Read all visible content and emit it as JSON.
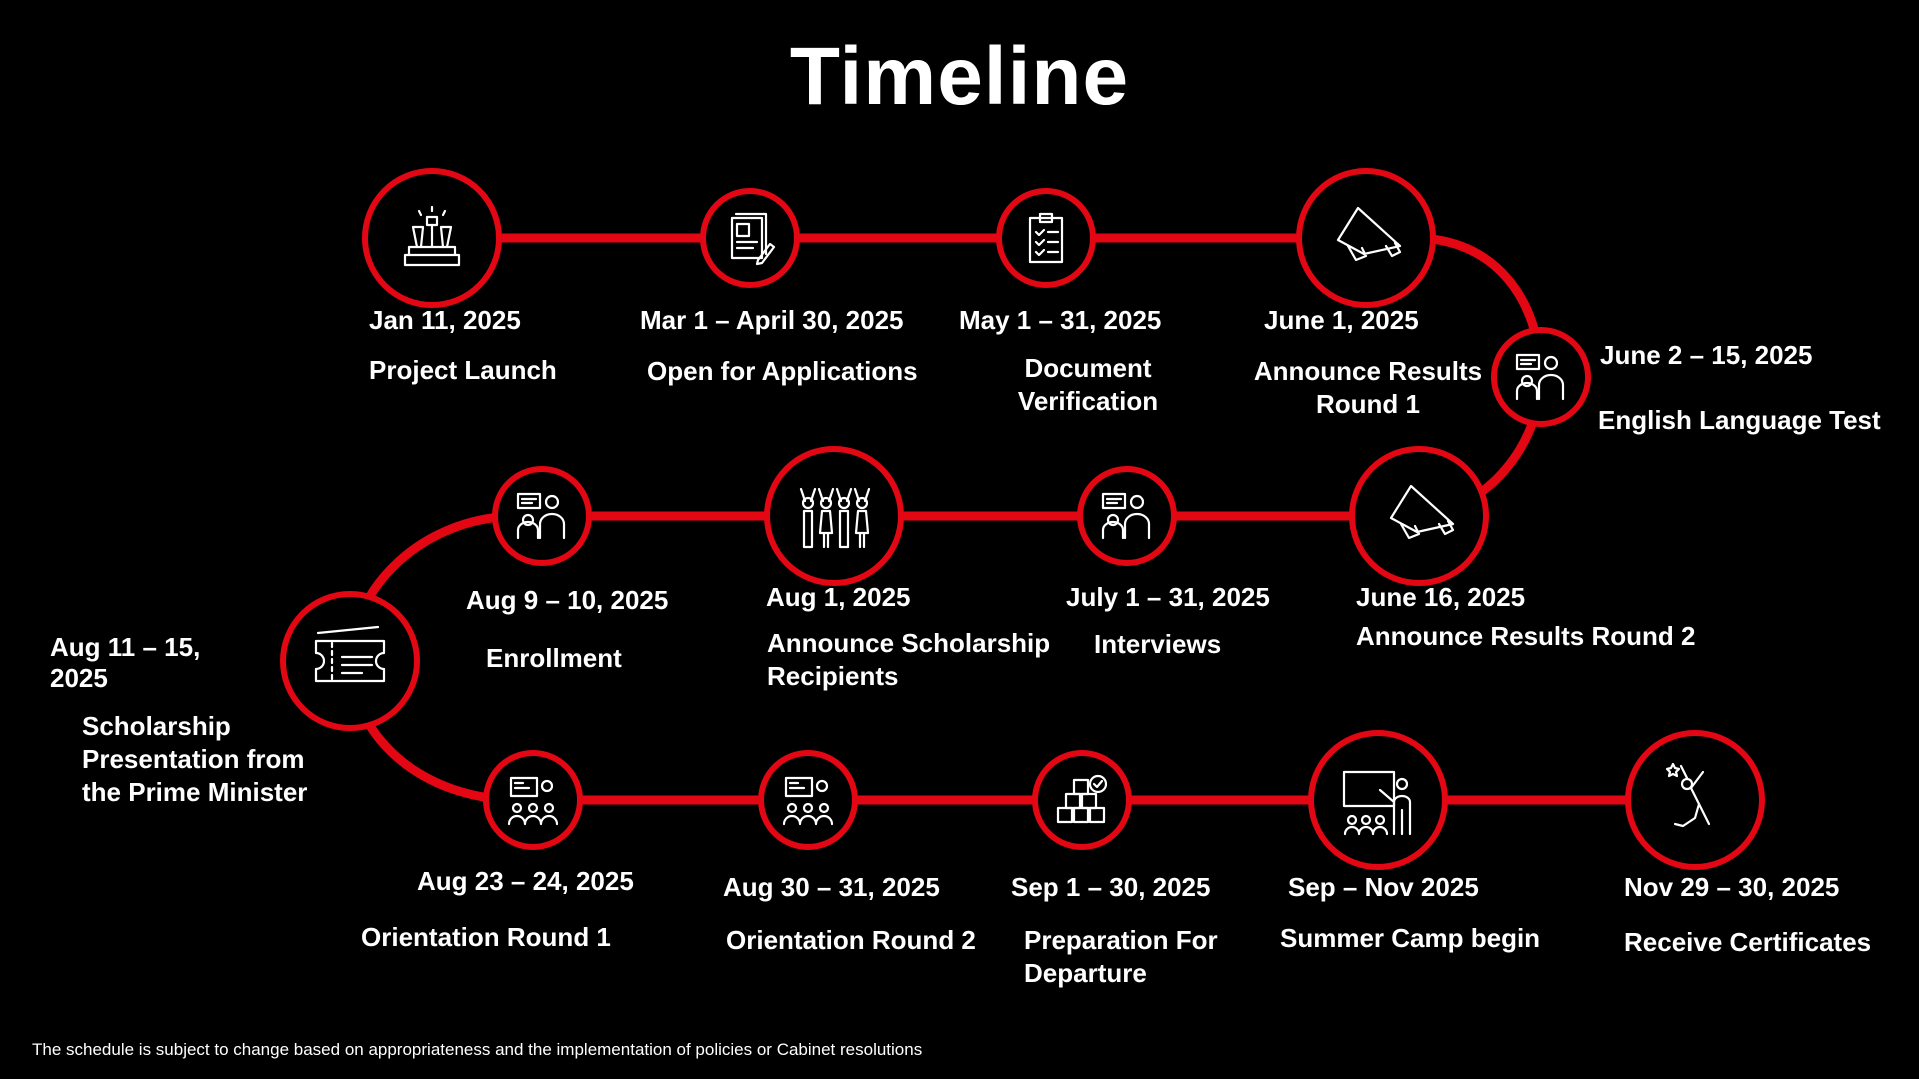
{
  "title": "Timeline",
  "colors": {
    "background": "#000000",
    "accent": "#e30613",
    "text": "#ffffff"
  },
  "events": [
    {
      "date": "Jan 11, 2025",
      "label": "Project Launch",
      "icon": "trophy-podium-icon"
    },
    {
      "date": "Mar 1 – April 30, 2025",
      "label": "Open for Applications",
      "icon": "application-form-icon"
    },
    {
      "date": "May 1 – 31, 2025",
      "label": "Document\nVerification",
      "icon": "checklist-clipboard-icon"
    },
    {
      "date": "June 1, 2025",
      "label": "Announce Results\nRound 1",
      "icon": "megaphone-icon"
    },
    {
      "date": "June 2 – 15, 2025",
      "label": "English Language Test",
      "icon": "test-taker-icon"
    },
    {
      "date": "June 16, 2025",
      "label": "Announce Results Round 2",
      "icon": "megaphone-icon"
    },
    {
      "date": "July 1 – 31, 2025",
      "label": "Interviews",
      "icon": "interview-icon"
    },
    {
      "date": "Aug 1, 2025",
      "label": "Announce Scholarship\nRecipients",
      "icon": "celebrating-people-icon"
    },
    {
      "date": "Aug 9 – 10, 2025",
      "label": "Enrollment",
      "icon": "enrollment-icon"
    },
    {
      "date": "Aug 11 –  15,\n2025",
      "label": "Scholarship\nPresentation from\nthe Prime Minister",
      "icon": "ticket-icon"
    },
    {
      "date": "Aug 23 – 24, 2025",
      "label": "Orientation Round 1",
      "icon": "orientation-audience-icon"
    },
    {
      "date": "Aug 30 – 31, 2025",
      "label": "Orientation Round 2",
      "icon": "orientation-audience-icon"
    },
    {
      "date": "Sep 1 – 30, 2025",
      "label": "Preparation For\nDeparture",
      "icon": "boxes-check-icon"
    },
    {
      "date": "Sep – Nov 2025",
      "label": "Summer Camp begin",
      "icon": "classroom-teacher-icon"
    },
    {
      "date": "Nov 29 – 30, 2025",
      "label": "Receive Certificates",
      "icon": "celebrating-person-icon"
    }
  ],
  "footnote": "The schedule is subject to change based on appropriateness and the implementation of policies or Cabinet resolutions"
}
